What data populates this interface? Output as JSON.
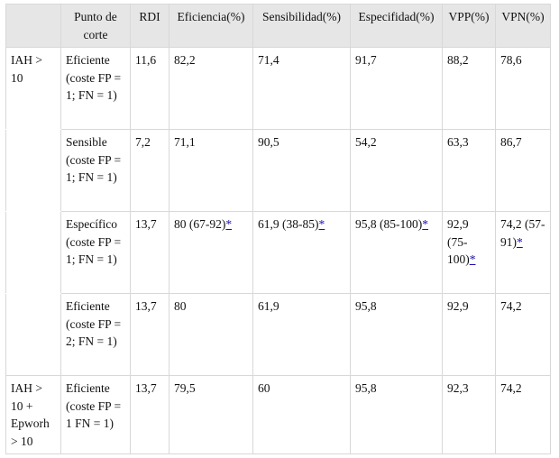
{
  "header": [
    "",
    "Punto de corte",
    "RDI",
    "Eficiencia(%)",
    "Sensibilidad(%)",
    "Especifidad(%)",
    "VPP(%)",
    "VPN(%)"
  ],
  "ref_marker": "*",
  "rows": [
    {
      "group": "IAH > 10",
      "cells": [
        {
          "v": "Eficiente (coste FP = 1; FN = 1)"
        },
        {
          "v": "11,6"
        },
        {
          "v": "82,2"
        },
        {
          "v": "71,4"
        },
        {
          "v": "91,7"
        },
        {
          "v": "88,2"
        },
        {
          "v": "78,6"
        }
      ]
    },
    {
      "group": "",
      "cells": [
        {
          "v": "Sensible (coste FP = 1; FN = 1)"
        },
        {
          "v": "7,2"
        },
        {
          "v": "71,1"
        },
        {
          "v": "90,5"
        },
        {
          "v": "54,2"
        },
        {
          "v": "63,3"
        },
        {
          "v": "86,7"
        }
      ]
    },
    {
      "group": "",
      "cells": [
        {
          "v": "Específico (coste FP = 1; FN = 1)"
        },
        {
          "v": "13,7"
        },
        {
          "v": "80 (67-92)",
          "ref": true
        },
        {
          "v": "61,9 (38-85)",
          "ref": true
        },
        {
          "v": "95,8 (85-100)",
          "ref": true
        },
        {
          "v": "92,9 (75-100)",
          "ref": true
        },
        {
          "v": "74,2 (57-91)",
          "ref": true
        }
      ]
    },
    {
      "group": "",
      "cells": [
        {
          "v": "Eficiente (coste FP = 2; FN = 1)"
        },
        {
          "v": "13,7"
        },
        {
          "v": "80"
        },
        {
          "v": "61,9"
        },
        {
          "v": "95,8"
        },
        {
          "v": "92,9"
        },
        {
          "v": "74,2"
        }
      ]
    },
    {
      "group": "IAH > 10 + Epworh > 10",
      "cells": [
        {
          "v": "Eficiente (coste FP = 1 FN = 1)"
        },
        {
          "v": "13,7"
        },
        {
          "v": "79,5"
        },
        {
          "v": "60"
        },
        {
          "v": "95,8"
        },
        {
          "v": "92,3"
        },
        {
          "v": "74,2"
        }
      ]
    }
  ]
}
